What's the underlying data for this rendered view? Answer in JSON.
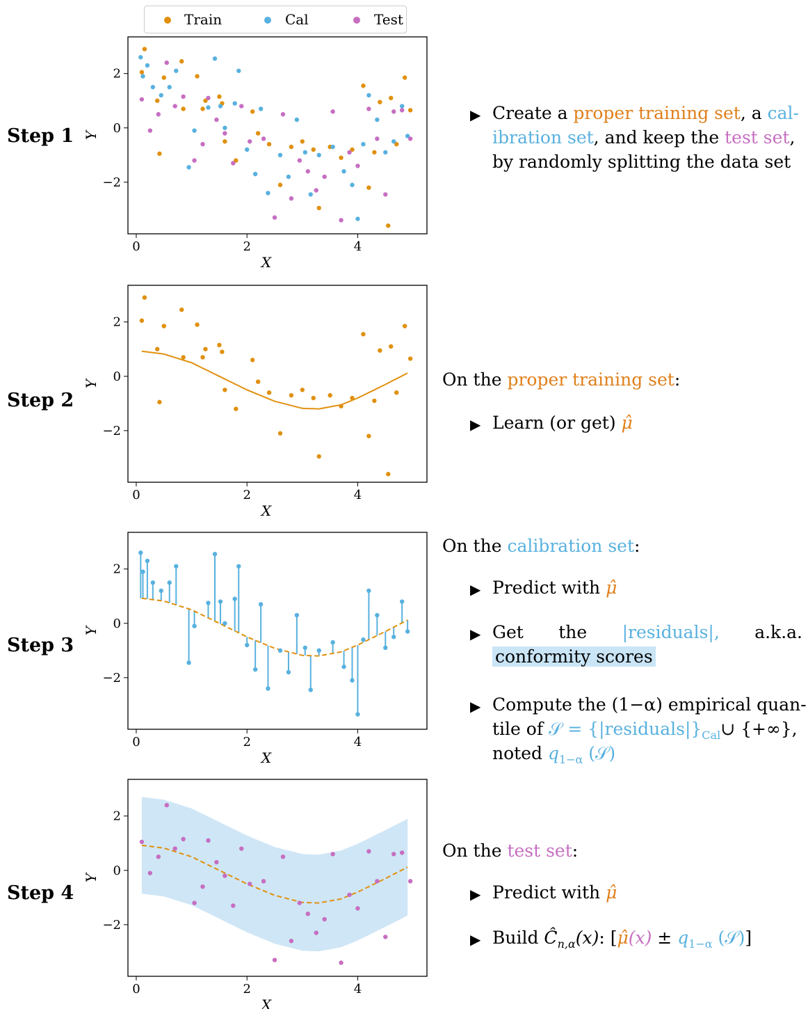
{
  "legend": {
    "train": "Train",
    "cal": "Cal",
    "test": "Test"
  },
  "colors": {
    "train": "#e0900e",
    "cal": "#58b1df",
    "test": "#c66ec1",
    "band": "#cfe6f6",
    "highlight": "#c9e5f6",
    "text_orange": "#e07f1a"
  },
  "steps": [
    {
      "label": "Step 1"
    },
    {
      "label": "Step 2"
    },
    {
      "label": "Step 3"
    },
    {
      "label": "Step 4"
    }
  ],
  "axes": {
    "xlabel": "X",
    "ylabel": "Y",
    "xticks": [
      "0",
      "2",
      "4"
    ],
    "yticks": [
      "2",
      "0",
      "−2"
    ]
  },
  "text": {
    "s1": {
      "line1_a": "Create a ",
      "line1_b": "proper training set",
      "line1_c": ", a ",
      "line1_d": "cal-",
      "line2_a": "ibration set",
      "line2_b": ", and keep the ",
      "line2_c": "test set",
      "line2_d": ",",
      "line3": "by randomly splitting the data set"
    },
    "s2": {
      "intro_a": "On the ",
      "intro_b": "proper training set",
      "intro_c": ":",
      "b1": "Learn (or get) ",
      "b1_mu": "μ̂"
    },
    "s3": {
      "intro_a": "On the ",
      "intro_b": "calibration set",
      "intro_c": ":",
      "b1": "Predict with ",
      "b1_mu": "μ̂",
      "b2_get": "Get",
      "b2_the": "the",
      "b2_res": "|residuals|,",
      "b2_aka": "a.k.a.",
      "b2_hl": "conformity scores",
      "b3_l1": "Compute the (1−α) empirical quan-",
      "b3_l2_a": "tile of ",
      "b3_l2_b": "𝒮 = {|residuals|}",
      "b3_l2_sub": "Cal",
      "b3_l2_c": "∪ {+∞},",
      "b3_l3_a": "noted ",
      "b3_l3_b": "q",
      "b3_l3_sub": "1−α",
      "b3_l3_c": " (𝒮)"
    },
    "s4": {
      "intro_a": "On the ",
      "intro_b": "test set",
      "intro_c": ":",
      "b1": "Predict with ",
      "b1_mu": "μ̂",
      "b2_a": "Build ",
      "b2_c": "Ĉ",
      "b2_sub": "n,α",
      "b2_x": "(x)",
      "b2_colon": ": [",
      "b2_mu": "μ̂",
      "b2_px": "(x)",
      "b2_pm": " ± ",
      "b2_q": "q",
      "b2_qsub": "1−α",
      "b2_qs": " (𝒮)",
      "b2_end": "]"
    }
  },
  "chart_data": [
    {
      "type": "scatter",
      "title": "Step 1",
      "xlabel": "X",
      "ylabel": "Y",
      "xlim": [
        -0.15,
        5.25
      ],
      "ylim": [
        -3.9,
        3.35
      ],
      "legend": "top",
      "series": [
        {
          "name": "Train",
          "color": "#e0900e",
          "x": [
            0.1,
            0.15,
            0.38,
            0.42,
            0.5,
            0.82,
            0.85,
            1.1,
            1.2,
            1.25,
            1.5,
            1.55,
            1.6,
            1.8,
            2.1,
            2.2,
            2.4,
            2.6,
            2.8,
            3.0,
            3.2,
            3.3,
            3.5,
            3.7,
            3.9,
            4.1,
            4.2,
            4.3,
            4.4,
            4.55,
            4.6,
            4.7,
            4.85,
            4.95
          ],
          "y": [
            2.05,
            2.9,
            1.0,
            -0.95,
            1.85,
            2.45,
            0.7,
            1.9,
            0.7,
            1.0,
            1.15,
            0.9,
            -0.5,
            -1.2,
            0.6,
            -0.2,
            -0.6,
            -2.1,
            -0.7,
            -0.5,
            -0.8,
            -2.95,
            -0.7,
            -1.1,
            -0.8,
            1.55,
            -2.2,
            -0.9,
            0.95,
            -3.6,
            1.1,
            -0.6,
            1.85,
            0.65
          ]
        },
        {
          "name": "Cal",
          "color": "#58b1df",
          "x": [
            0.08,
            0.12,
            0.2,
            0.3,
            0.45,
            0.6,
            0.72,
            0.95,
            1.05,
            1.3,
            1.42,
            1.52,
            1.6,
            1.78,
            1.85,
            2.0,
            2.15,
            2.25,
            2.38,
            2.6,
            2.75,
            2.9,
            3.05,
            3.15,
            3.3,
            3.55,
            3.75,
            3.9,
            4.0,
            4.1,
            4.2,
            4.35,
            4.5,
            4.65,
            4.8,
            4.9
          ],
          "y": [
            2.6,
            1.9,
            2.3,
            1.5,
            1.2,
            1.5,
            2.1,
            -1.45,
            -0.1,
            0.75,
            2.55,
            0.8,
            0.0,
            0.9,
            2.1,
            -0.8,
            -1.7,
            0.7,
            -2.4,
            -1.0,
            -1.8,
            0.3,
            -0.9,
            -2.45,
            -1.0,
            -0.7,
            -1.6,
            -2.1,
            -3.35,
            -0.6,
            1.2,
            0.3,
            -0.9,
            -0.5,
            0.8,
            -0.3
          ]
        },
        {
          "name": "Test",
          "color": "#c66ec1",
          "x": [
            0.1,
            0.25,
            0.4,
            0.55,
            0.7,
            0.85,
            1.05,
            1.2,
            1.3,
            1.45,
            1.6,
            1.75,
            1.9,
            2.05,
            2.3,
            2.5,
            2.65,
            2.8,
            2.95,
            3.1,
            3.25,
            3.4,
            3.55,
            3.7,
            3.85,
            4.0,
            4.2,
            4.35,
            4.5,
            4.65,
            4.8,
            4.95
          ],
          "y": [
            1.05,
            -0.1,
            0.5,
            2.4,
            0.8,
            1.15,
            -1.2,
            -0.6,
            1.1,
            0.3,
            -0.2,
            -1.3,
            0.8,
            -0.5,
            -0.4,
            -3.3,
            0.5,
            -2.6,
            -1.2,
            -1.6,
            -2.3,
            -1.8,
            0.6,
            -3.4,
            -0.9,
            -1.4,
            0.7,
            -0.4,
            -2.45,
            0.6,
            0.65,
            -0.4
          ]
        }
      ]
    },
    {
      "type": "line",
      "title": "Step 2",
      "xlabel": "X",
      "ylabel": "Y",
      "xlim": [
        -0.15,
        5.25
      ],
      "ylim": [
        -3.9,
        3.35
      ],
      "curve": {
        "name": "μ̂",
        "x": [
          0.1,
          0.5,
          1.0,
          1.5,
          2.0,
          2.5,
          3.0,
          3.3,
          3.7,
          4.0,
          4.5,
          4.9
        ],
        "y": [
          0.92,
          0.82,
          0.5,
          0.0,
          -0.5,
          -0.92,
          -1.18,
          -1.2,
          -1.05,
          -0.8,
          -0.3,
          0.12
        ]
      },
      "points_x": [
        0.1,
        0.15,
        0.38,
        0.42,
        0.5,
        0.82,
        0.85,
        1.1,
        1.2,
        1.25,
        1.5,
        1.55,
        1.6,
        1.8,
        2.1,
        2.2,
        2.4,
        2.6,
        2.8,
        3.0,
        3.2,
        3.3,
        3.5,
        3.7,
        3.9,
        4.1,
        4.2,
        4.3,
        4.4,
        4.55,
        4.6,
        4.7,
        4.85,
        4.95
      ],
      "points_y": [
        2.05,
        2.9,
        1.0,
        -0.95,
        1.85,
        2.45,
        0.7,
        1.9,
        0.7,
        1.0,
        1.15,
        0.9,
        -0.5,
        -1.2,
        0.6,
        -0.2,
        -0.6,
        -2.1,
        -0.7,
        -0.5,
        -0.8,
        -2.95,
        -0.7,
        -1.1,
        -0.8,
        1.55,
        -2.2,
        -0.9,
        0.95,
        -3.6,
        1.1,
        -0.6,
        1.85,
        0.65
      ]
    },
    {
      "type": "scatter",
      "title": "Step 3",
      "xlabel": "X",
      "ylabel": "Y",
      "xlim": [
        -0.15,
        5.25
      ],
      "ylim": [
        -3.9,
        3.35
      ],
      "residual_stems": true,
      "x": [
        0.08,
        0.12,
        0.2,
        0.3,
        0.45,
        0.6,
        0.72,
        0.95,
        1.05,
        1.3,
        1.42,
        1.52,
        1.6,
        1.78,
        1.85,
        2.0,
        2.15,
        2.25,
        2.38,
        2.6,
        2.75,
        2.9,
        3.05,
        3.15,
        3.3,
        3.55,
        3.75,
        3.9,
        4.0,
        4.1,
        4.2,
        4.35,
        4.5,
        4.65,
        4.8,
        4.9
      ],
      "y": [
        2.6,
        1.9,
        2.3,
        1.5,
        1.2,
        1.5,
        2.1,
        -1.45,
        -0.1,
        0.75,
        2.55,
        0.8,
        0.0,
        0.9,
        2.1,
        -0.8,
        -1.7,
        0.7,
        -2.4,
        -1.0,
        -1.8,
        0.3,
        -0.9,
        -2.45,
        -1.0,
        -0.7,
        -1.6,
        -2.1,
        -3.35,
        -0.6,
        1.2,
        0.3,
        -0.9,
        -0.5,
        0.8,
        -0.3
      ]
    },
    {
      "type": "area",
      "title": "Step 4",
      "xlabel": "X",
      "ylabel": "Y",
      "xlim": [
        -0.15,
        5.25
      ],
      "ylim": [
        -3.9,
        3.35
      ],
      "band_halfwidth": 1.78,
      "x": [
        0.1,
        0.25,
        0.4,
        0.55,
        0.7,
        0.85,
        1.05,
        1.2,
        1.3,
        1.45,
        1.6,
        1.75,
        1.9,
        2.05,
        2.3,
        2.5,
        2.65,
        2.8,
        2.95,
        3.1,
        3.25,
        3.4,
        3.55,
        3.7,
        3.85,
        4.0,
        4.2,
        4.35,
        4.5,
        4.65,
        4.8,
        4.95
      ],
      "y": [
        1.05,
        -0.1,
        0.5,
        2.4,
        0.8,
        1.15,
        -1.2,
        -0.6,
        1.1,
        0.3,
        -0.2,
        -1.3,
        0.8,
        -0.5,
        -0.4,
        -3.3,
        0.5,
        -2.6,
        -1.2,
        -1.6,
        -2.3,
        -1.8,
        0.6,
        -3.4,
        -0.9,
        -1.4,
        0.7,
        -0.4,
        -2.45,
        0.6,
        0.65,
        -0.4
      ]
    }
  ]
}
